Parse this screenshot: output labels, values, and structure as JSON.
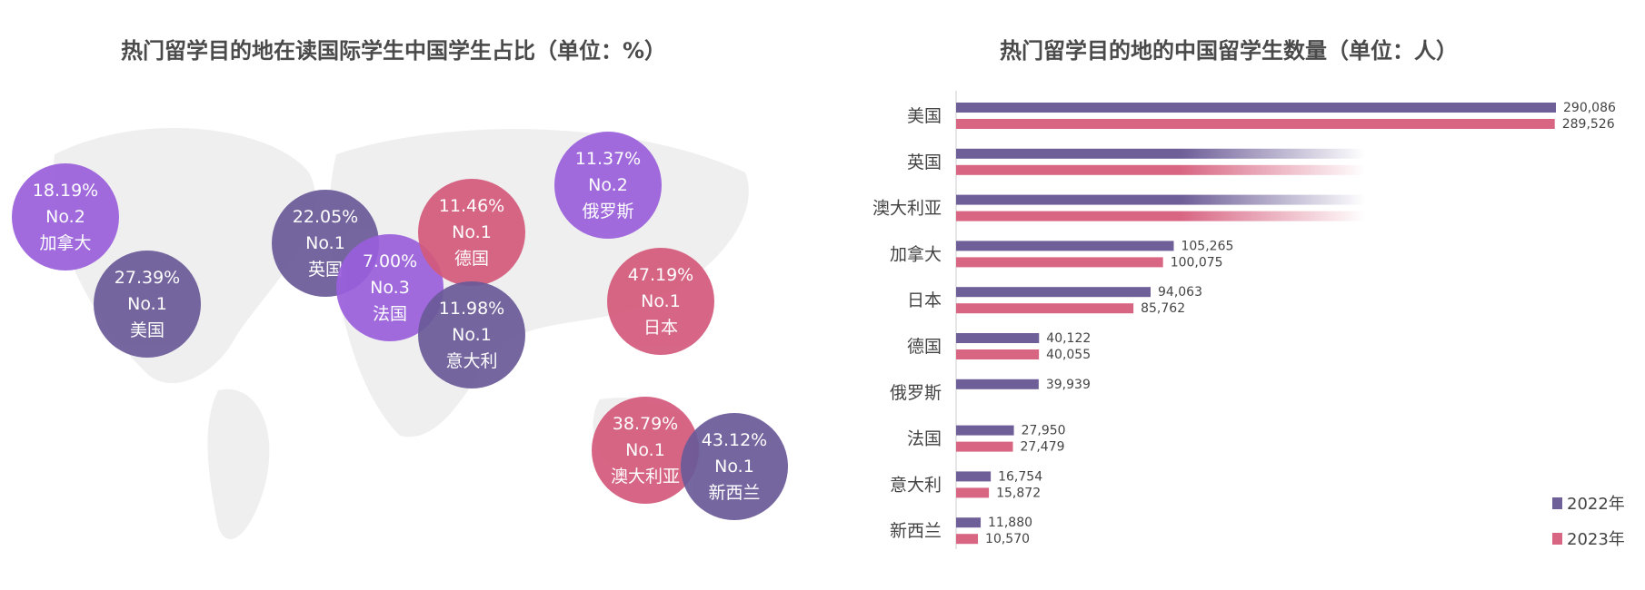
{
  "colors": {
    "dark_purple": "#6a5a99",
    "light_purple": "#9a5fdc",
    "pink": "#d45a7c",
    "series_2022": "#6e5f98",
    "series_2023": "#d86683"
  },
  "chart_data": [
    {
      "type": "bubble-map",
      "title": "热门留学目的地在读国际学生中国学生占比（单位：%）",
      "points": [
        {
          "country": "加拿大",
          "share": "18.19%",
          "rank": "No.2",
          "color": "light_purple"
        },
        {
          "country": "美国",
          "share": "27.39%",
          "rank": "No.1",
          "color": "dark_purple"
        },
        {
          "country": "英国",
          "share": "22.05%",
          "rank": "No.1",
          "color": "dark_purple"
        },
        {
          "country": "法国",
          "share": "7.00%",
          "rank": "No.3",
          "color": "light_purple"
        },
        {
          "country": "德国",
          "share": "11.46%",
          "rank": "No.1",
          "color": "pink"
        },
        {
          "country": "意大利",
          "share": "11.98%",
          "rank": "No.1",
          "color": "dark_purple"
        },
        {
          "country": "俄罗斯",
          "share": "11.37%",
          "rank": "No.2",
          "color": "light_purple"
        },
        {
          "country": "日本",
          "share": "47.19%",
          "rank": "No.1",
          "color": "pink"
        },
        {
          "country": "澳大利亚",
          "share": "38.79%",
          "rank": "No.1",
          "color": "pink"
        },
        {
          "country": "新西兰",
          "share": "43.12%",
          "rank": "No.1",
          "color": "dark_purple"
        }
      ]
    },
    {
      "type": "bar",
      "orientation": "horizontal",
      "title": "热门留学目的地的中国留学生数量（单位：人）",
      "categories": [
        "美国",
        "英国",
        "澳大利亚",
        "加拿大",
        "日本",
        "德国",
        "俄罗斯",
        "法国",
        "意大利",
        "新西兰"
      ],
      "series": [
        {
          "name": "2022年",
          "values": [
            290086,
            null,
            null,
            105265,
            94063,
            40122,
            39939,
            27950,
            16754,
            11880
          ],
          "labels": [
            "290,086",
            "",
            "",
            "105,265",
            "94,063",
            "40,122",
            "39,939",
            "27,950",
            "16,754",
            "11,880"
          ]
        },
        {
          "name": "2023年",
          "values": [
            289526,
            null,
            null,
            100075,
            85762,
            40055,
            null,
            27479,
            15872,
            10570
          ],
          "labels": [
            "289,526",
            "",
            "",
            "100,075",
            "85,762",
            "40,055",
            "",
            "27,479",
            "15,872",
            "10,570"
          ]
        }
      ],
      "obscured_categories": [
        "英国",
        "澳大利亚"
      ],
      "legend": "bottom-right",
      "grid": false
    }
  ]
}
